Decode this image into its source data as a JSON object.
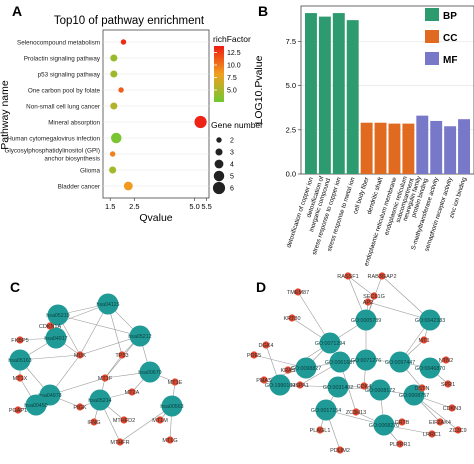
{
  "panels": {
    "a": "A",
    "b": "B",
    "c": "C",
    "d": "D"
  },
  "chart_data": [
    {
      "type": "scatter",
      "title": "Top10 of pathway enrichment",
      "xlabel": "Qvalue",
      "ylabel": "Pathway name",
      "xlim": [
        1.2,
        5.6
      ],
      "xticks": [
        1.5,
        2.5,
        5.0,
        5.5
      ],
      "xtick_labels": [
        "1.5",
        "2.5",
        "5.0",
        "5.5"
      ],
      "colorbar": {
        "title": "richFactor",
        "ticks": [
          5.0,
          7.5,
          10.0,
          12.5
        ],
        "tick_labels": [
          "5.0",
          "7.5",
          "10.0",
          "12.5"
        ],
        "min": 2.6,
        "max": 13.8,
        "low": "#72c733",
        "high": "#ee1c14"
      },
      "sizebar": {
        "title": "Gene number",
        "values": [
          2,
          3,
          4,
          5,
          6
        ]
      },
      "categories": [
        "Selenocompound metabolism",
        "Prolactin signaling pathway",
        "p53 signaling pathway",
        "One carbon pool by folate",
        "Non-small cell lung cancer",
        "Mineral absorption",
        "Human cytomegalovirus infection",
        "Glycosylphosphatidylinositol (GPI)-anchor biosynthesis",
        "Glioma",
        "Bladder cancer"
      ],
      "points": [
        {
          "category": "Selenocompound metabolism",
          "x": 2.05,
          "size": 2,
          "color_value": 13.2
        },
        {
          "category": "Prolactin signaling pathway",
          "x": 1.65,
          "size": 3,
          "color_value": 4.3
        },
        {
          "category": "p53 signaling pathway",
          "x": 1.65,
          "size": 3,
          "color_value": 4.6
        },
        {
          "category": "One carbon pool by folate",
          "x": 1.95,
          "size": 2,
          "color_value": 11.0
        },
        {
          "category": "Non-small cell lung cancer",
          "x": 1.65,
          "size": 3,
          "color_value": 5.4
        },
        {
          "category": "Mineral absorption",
          "x": 5.25,
          "size": 6,
          "color_value": 13.5
        },
        {
          "category": "Human cytomegalovirus infection",
          "x": 1.75,
          "size": 5,
          "color_value": 3.0
        },
        {
          "category": "Glycosylphosphatidylinositol (GPI)-anchor biosynthesis",
          "x": 1.6,
          "size": 2,
          "color_value": 9.5
        },
        {
          "category": "Glioma",
          "x": 1.6,
          "size": 3,
          "color_value": 4.8
        },
        {
          "category": "Bladder cancer",
          "x": 2.25,
          "size": 4,
          "color_value": 8.4
        }
      ]
    },
    {
      "type": "bar",
      "ylabel": "LOG10.Pvalue",
      "ylim": [
        0,
        9.5
      ],
      "yticks": [
        0.0,
        2.5,
        5.0,
        7.5
      ],
      "ytick_labels": [
        "0.0",
        "2.5",
        "5.0",
        "7.5"
      ],
      "legend": {
        "position": "right",
        "items": [
          {
            "name": "BP",
            "color": "#2e9a6f"
          },
          {
            "name": "CC",
            "color": "#e06a20"
          },
          {
            "name": "MF",
            "color": "#7878c8"
          }
        ]
      },
      "categories": [
        "detoxification of copper ion",
        "detoxification of inorganic compound",
        "stress response to copper ion",
        "stress response to metal ion",
        "cell body fiber",
        "dendritic shaft",
        "endoplasmic reticulum membrane",
        "endoplasmic reticulum subcompartment",
        "neuregulin family protein binding",
        "S-methyltransferase activity",
        "semaphorin receptor activity",
        "zinc ion binding"
      ],
      "values": [
        9.1,
        8.9,
        9.1,
        8.7,
        2.9,
        2.9,
        2.85,
        2.85,
        3.3,
        3.0,
        2.7,
        3.1
      ],
      "groups": [
        "BP",
        "BP",
        "BP",
        "BP",
        "CC",
        "CC",
        "CC",
        "CC",
        "MF",
        "MF",
        "MF",
        "MF"
      ]
    }
  ],
  "network_c": {
    "hubs": [
      "hsa05219",
      "hsa04115",
      "hsa04917",
      "hsa05212",
      "hsa05163",
      "hsa00670",
      "hsa04978",
      "hsa05214",
      "hsa00450",
      "hsa00563"
    ],
    "genes": [
      "CDKN1A",
      "FKBP5",
      "MDK",
      "TP53",
      "MT1X",
      "MT1F",
      "MT2A",
      "MT1E",
      "PGAP1",
      "PIGK",
      "MTHFD2",
      "IFNG",
      "MT1M",
      "MT1G",
      "MTHFR"
    ]
  },
  "network_d": {
    "go_terms": [
      "GO:0005789",
      "GO:0042383",
      "GO:0071294",
      "GO:0098827",
      "GO:0061687",
      "GO:0071276",
      "GO:0097447",
      "GO:0046870",
      "GO:1990169",
      "GO:0031402",
      "GO:0008172",
      "GO:0008757",
      "GO:0017154",
      "GO:0008270"
    ],
    "genes": [
      "RASSF1",
      "RAB3GAP2",
      "TMEM87",
      "SEC61G",
      "KRT80",
      "AP2",
      "MT1",
      "NTN2",
      "PDE5",
      "PMAS",
      "KRAS",
      "HSPA1",
      "SPR1",
      "DSTN",
      "DGK4",
      "CDK4",
      "CDKN3",
      "EIF2AK4",
      "PLAGL1",
      "PDLIM2",
      "ZC3H13",
      "PLPPR1",
      "LRRC1",
      "ZC3C9",
      "CRTB"
    ]
  }
}
